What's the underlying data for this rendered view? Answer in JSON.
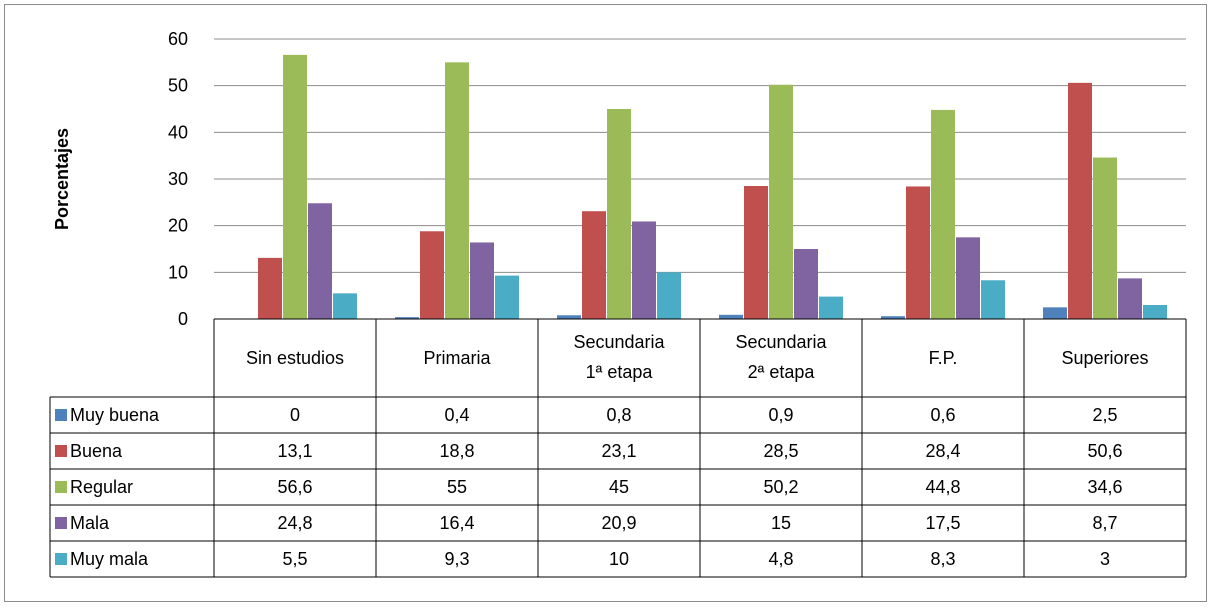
{
  "chart_data": {
    "type": "bar",
    "title": "",
    "xlabel": "",
    "ylabel": "Porcentajes",
    "ylim": [
      0,
      60
    ],
    "yticks": [
      0,
      10,
      20,
      30,
      40,
      50,
      60
    ],
    "grid": true,
    "legend": "data-table",
    "categories": [
      [
        "Sin estudios"
      ],
      [
        "Primaria"
      ],
      [
        "Secundaria",
        "1ª etapa"
      ],
      [
        "Secundaria",
        "2ª etapa"
      ],
      [
        "F.P."
      ],
      [
        "Superiores"
      ]
    ],
    "series": [
      {
        "name": "Muy buena",
        "color": "#4f81bd",
        "values": [
          0,
          0.4,
          0.8,
          0.9,
          0.6,
          2.5
        ],
        "labels": [
          "0",
          "0,4",
          "0,8",
          "0,9",
          "0,6",
          "2,5"
        ]
      },
      {
        "name": "Buena",
        "color": "#c0504d",
        "values": [
          13.1,
          18.8,
          23.1,
          28.5,
          28.4,
          50.6
        ],
        "labels": [
          "13,1",
          "18,8",
          "23,1",
          "28,5",
          "28,4",
          "50,6"
        ]
      },
      {
        "name": "Regular",
        "color": "#9bbb59",
        "values": [
          56.6,
          55,
          45,
          50.2,
          44.8,
          34.6
        ],
        "labels": [
          "56,6",
          "55",
          "45",
          "50,2",
          "44,8",
          "34,6"
        ]
      },
      {
        "name": "Mala",
        "color": "#8064a2",
        "values": [
          24.8,
          16.4,
          20.9,
          15,
          17.5,
          8.7
        ],
        "labels": [
          "24,8",
          "16,4",
          "20,9",
          "15",
          "17,5",
          "8,7"
        ]
      },
      {
        "name": "Muy mala",
        "color": "#4bacc6",
        "values": [
          5.5,
          9.3,
          10,
          4.8,
          8.3,
          3
        ],
        "labels": [
          "5,5",
          "9,3",
          "10",
          "4,8",
          "8,3",
          "3"
        ]
      }
    ]
  }
}
